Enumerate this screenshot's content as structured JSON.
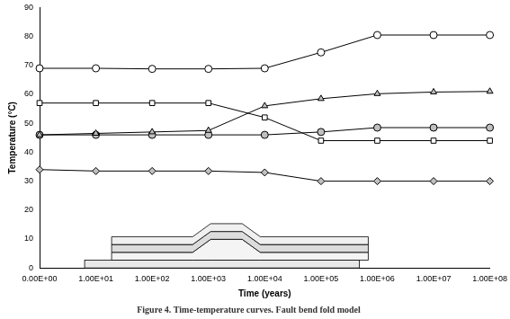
{
  "chart_data": {
    "type": "line",
    "title": "Figure 4. Time-temperature curves. Fault bend fold model",
    "x_label": "Time (years)",
    "y_label": "Temperature (°C)",
    "categories": [
      "0.00E+00",
      "1.00E+01",
      "1.00E+02",
      "1.00E+03",
      "1.00E+04",
      "1.00E+05",
      "1.00E+06",
      "1.00E+07",
      "1.00E+08"
    ],
    "series": [
      {
        "color": "#ffffff",
        "marker": "circle",
        "values": [
          69,
          69,
          68.8,
          68.8,
          69,
          74.5,
          80.5,
          80.5,
          80.5
        ]
      },
      {
        "color": "#ffffff",
        "marker": "square",
        "values": [
          57,
          57,
          57,
          57,
          52,
          44,
          44,
          44,
          44
        ]
      },
      {
        "color": "#c0c0c0",
        "marker": "triangle",
        "values": [
          46,
          46.5,
          47,
          47.5,
          56,
          58.5,
          60.2,
          60.8,
          61
        ]
      },
      {
        "color": "#c0c0c0",
        "marker": "circle",
        "values": [
          46,
          46,
          46,
          46,
          46,
          47,
          48.5,
          48.5,
          48.5
        ]
      },
      {
        "color": "#c0c0c0",
        "marker": "diamond",
        "values": [
          34,
          33.5,
          33.5,
          33.5,
          33,
          30,
          30,
          30,
          30
        ]
      }
    ],
    "ylim": [
      0,
      90
    ],
    "yticks": [
      0,
      10,
      20,
      30,
      40,
      50,
      60,
      70,
      80,
      90
    ],
    "grid": false
  }
}
